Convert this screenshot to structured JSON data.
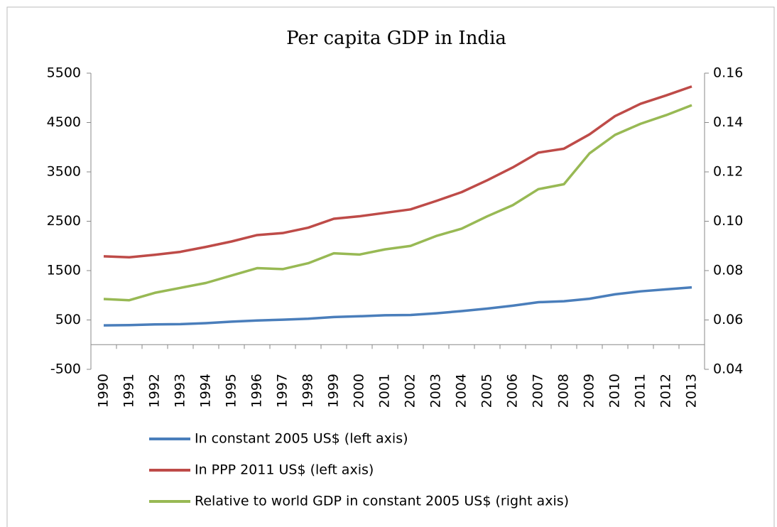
{
  "chart_data": {
    "type": "line",
    "title": "Per capita GDP in India",
    "categories": [
      "1990",
      "1991",
      "1992",
      "1993",
      "1994",
      "1995",
      "1996",
      "1997",
      "1998",
      "1999",
      "2000",
      "2001",
      "2002",
      "2003",
      "2004",
      "2005",
      "2006",
      "2007",
      "2008",
      "2009",
      "2010",
      "2011",
      "2012",
      "2013"
    ],
    "ylim": [
      -500,
      5500
    ],
    "yticks": [
      -500,
      500,
      1500,
      2500,
      3500,
      4500,
      5500
    ],
    "y2lim": [
      0.04,
      0.16
    ],
    "y2ticks": [
      0.04,
      0.06,
      0.08,
      {
        "value": 0.1,
        "label": "0.10"
      },
      0.12,
      0.14,
      0.16
    ],
    "series": [
      {
        "name": "In constant 2005 US$ (left axis)",
        "color": "#4a7ebb",
        "values": [
          390,
          395,
          410,
          415,
          435,
          465,
          490,
          505,
          525,
          560,
          575,
          595,
          600,
          635,
          680,
          730,
          790,
          860,
          880,
          930,
          1020,
          1080,
          1120,
          1160
        ]
      },
      {
        "name": "In PPP 2011 US$ (left axis)",
        "color": "#be4b48",
        "values": [
          1790,
          1770,
          1820,
          1880,
          1980,
          2090,
          2220,
          2260,
          2370,
          2550,
          2600,
          2670,
          2740,
          2910,
          3090,
          3330,
          3590,
          3890,
          3970,
          4260,
          4630,
          4880,
          5050,
          5230
        ]
      },
      {
        "name": "Relative to world GDP in constant 2005 US$ (right axis)",
        "color": "#98b954",
        "axis": "y2",
        "values": [
          0.0685,
          0.068,
          0.071,
          0.073,
          0.075,
          0.078,
          0.081,
          0.0806,
          0.083,
          0.087,
          0.0865,
          0.0886,
          0.09,
          0.094,
          0.097,
          0.102,
          0.1065,
          0.113,
          0.115,
          0.1275,
          0.135,
          0.1395,
          0.143,
          0.147
        ]
      }
    ]
  }
}
